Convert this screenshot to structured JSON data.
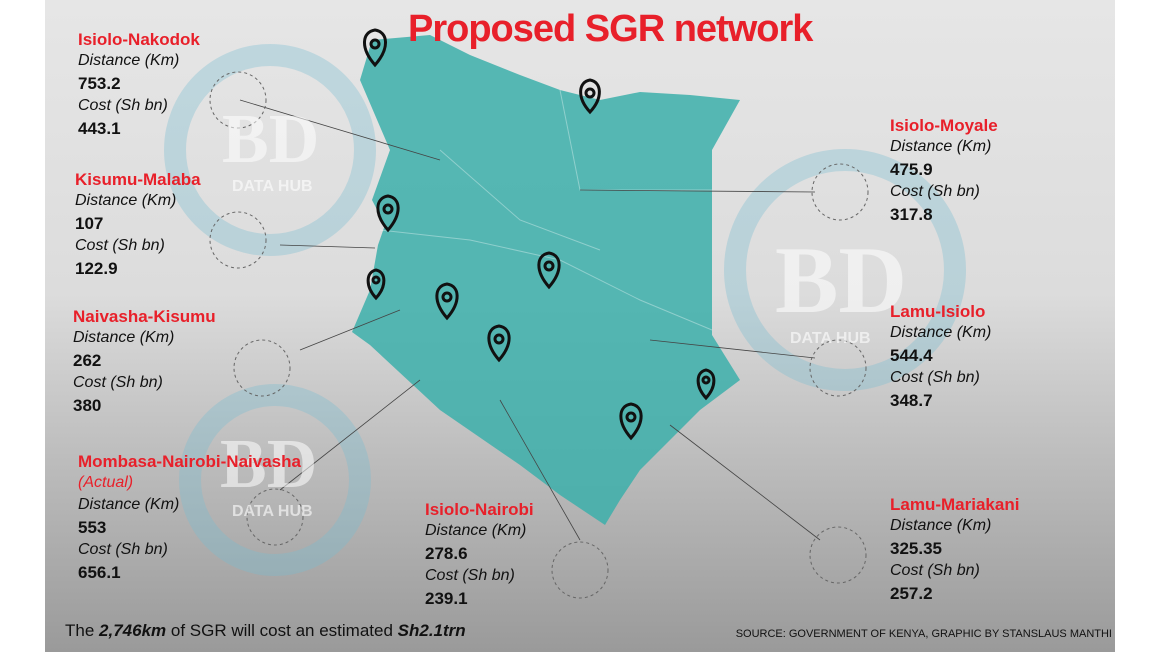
{
  "header": {
    "title": "Proposed SGR network"
  },
  "routes": [
    {
      "name": "Isiolo-Nakodok",
      "distance_label": "Distance (Km)",
      "distance": "753.2",
      "cost_label": "Cost (Sh bn)",
      "cost": "443.1"
    },
    {
      "name": "Kisumu-Malaba",
      "distance_label": "Distance (Km)",
      "distance": "107",
      "cost_label": "Cost (Sh bn)",
      "cost": "122.9"
    },
    {
      "name": "Naivasha-Kisumu",
      "distance_label": "Distance (Km)",
      "distance": "262",
      "cost_label": "Cost (Sh bn)",
      "cost": "380"
    },
    {
      "name": "Mombasa-Nairobi-Naivasha",
      "note": "(Actual)",
      "distance_label": "Distance (Km)",
      "distance": "553",
      "cost_label": "Cost (Sh bn)",
      "cost": "656.1"
    },
    {
      "name": "Isiolo-Nairobi",
      "distance_label": "Distance (Km)",
      "distance": "278.6",
      "cost_label": "Cost (Sh bn)",
      "cost": "239.1"
    },
    {
      "name": "Isiolo-Moyale",
      "distance_label": "Distance (Km)",
      "distance": "475.9",
      "cost_label": "Cost (Sh bn)",
      "cost": "317.8"
    },
    {
      "name": "Lamu-Isiolo",
      "distance_label": "Distance (Km)",
      "distance": "544.4",
      "cost_label": "Cost (Sh bn)",
      "cost": "348.7"
    },
    {
      "name": "Lamu-Mariakani",
      "distance_label": "Distance (Km)",
      "distance": "325.35",
      "cost_label": "Cost (Sh bn)",
      "cost": "257.2"
    }
  ],
  "watermark": {
    "letters": "BD",
    "sub": "DATA HUB"
  },
  "footer": {
    "summary": [
      "The ",
      "2,746km",
      " of SGR will cost an estimated ",
      "Sh2.1trn"
    ],
    "source": "SOURCE: GOVERNMENT OF KENYA, GRAPHIC BY STANSLAUS MANTHI"
  }
}
